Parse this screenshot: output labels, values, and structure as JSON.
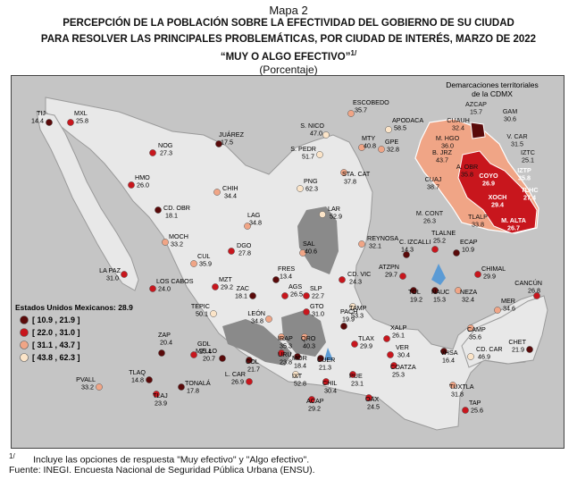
{
  "title": {
    "line1": "Mapa 2",
    "line2": "Percepción de la población sobre la efectividad del gobierno de su ciudad",
    "line3": "para resolver las principales problemáticas,  por ciudad de interés, marzo de 2022",
    "line4": "“Muy o algo efectivo”",
    "line4_sup": "1/",
    "line5": "(Porcentaje)"
  },
  "legend": {
    "title": "Estados Unidos Mexicanos: 28.9",
    "items": [
      {
        "label": "[ 10.9 , 21.9 ]",
        "color": "#5a0a0a"
      },
      {
        "label": "[ 22.0 , 31.0 ]",
        "color": "#c8161d"
      },
      {
        "label": "[ 31.1 , 43.7 ]",
        "color": "#f0a586"
      },
      {
        "label": "[ 43.8 , 62.3 ]",
        "color": "#fbe4c8"
      }
    ]
  },
  "inset": {
    "title_line1": "Demarcaciones territoriales",
    "title_line2": "de la CDMX"
  },
  "cities": [
    {
      "name": "TIJ",
      "value": "14.4",
      "cls": 1
    },
    {
      "name": "MXL",
      "value": "25.8",
      "cls": 2
    },
    {
      "name": "NOG",
      "value": "27.3",
      "cls": 2
    },
    {
      "name": "JUÁREZ",
      "value": "17.5",
      "cls": 1
    },
    {
      "name": "HMO",
      "value": "26.0",
      "cls": 2
    },
    {
      "name": "CHIH",
      "value": "34.4",
      "cls": 3
    },
    {
      "name": "CD. OBR",
      "value": "18.1",
      "cls": 1
    },
    {
      "name": "LA PAZ",
      "value": "31.0",
      "cls": 2
    },
    {
      "name": "LOS CABOS",
      "value": "24.0",
      "cls": 2
    },
    {
      "name": "MOCH",
      "value": "33.2",
      "cls": 3
    },
    {
      "name": "CUL",
      "value": "35.9",
      "cls": 3
    },
    {
      "name": "MZT",
      "value": "29.2",
      "cls": 2
    },
    {
      "name": "DGO",
      "value": "27.8",
      "cls": 2
    },
    {
      "name": "LAG",
      "value": "34.8",
      "cls": 3
    },
    {
      "name": "PNG",
      "value": "62.3",
      "cls": 4
    },
    {
      "name": "ESCOBEDO",
      "value": "35.7",
      "cls": 3
    },
    {
      "name": "APODACA",
      "value": "58.5",
      "cls": 4
    },
    {
      "name": "S. NICO",
      "value": "47.0",
      "cls": 4
    },
    {
      "name": "GPE",
      "value": "32.8",
      "cls": 3
    },
    {
      "name": "S. PEDR",
      "value": "51.7",
      "cls": 4
    },
    {
      "name": "MTY",
      "value": "40.8",
      "cls": 3
    },
    {
      "name": "STA. CAT",
      "value": "37.8",
      "cls": 3
    },
    {
      "name": "LAR",
      "value": "52.9",
      "cls": 4
    },
    {
      "name": "REYNOSA",
      "value": "32.1",
      "cls": 3
    },
    {
      "name": "SAL",
      "value": "40.6",
      "cls": 3
    },
    {
      "name": "FRES",
      "value": "13.4",
      "cls": 1
    },
    {
      "name": "CD. VIC",
      "value": "24.3",
      "cls": 2
    },
    {
      "name": "ZAC",
      "value": "18.1",
      "cls": 1
    },
    {
      "name": "AGS",
      "value": "26.5",
      "cls": 2
    },
    {
      "name": "SLP",
      "value": "22.7",
      "cls": 2
    },
    {
      "name": "TEPIC",
      "value": "50.1",
      "cls": 4
    },
    {
      "name": "LEÓN",
      "value": "34.8",
      "cls": 3
    },
    {
      "name": "GTO",
      "value": "31.0",
      "cls": 2
    },
    {
      "name": "TAMP",
      "value": "53.3",
      "cls": 4
    },
    {
      "name": "IRAP",
      "value": "35.3",
      "cls": 3
    },
    {
      "name": "QRO",
      "value": "40.3",
      "cls": 3
    },
    {
      "name": "PACH",
      "value": "19.9",
      "cls": 1
    },
    {
      "name": "MZLLO",
      "value": "20.7",
      "cls": 1
    },
    {
      "name": "COL",
      "value": "21.7",
      "cls": 1
    },
    {
      "name": "URU",
      "value": "23.8",
      "cls": 2
    },
    {
      "name": "MOR",
      "value": "18.4",
      "cls": 1
    },
    {
      "name": "TLAX",
      "value": "29.9",
      "cls": 2
    },
    {
      "name": "XALP",
      "value": "26.1",
      "cls": 2
    },
    {
      "name": "VER",
      "value": "30.4",
      "cls": 2
    },
    {
      "name": "L. CAR",
      "value": "26.9",
      "cls": 2
    },
    {
      "name": "IXT",
      "value": "52.8",
      "cls": 4
    },
    {
      "name": "CUER",
      "value": "21.3",
      "cls": 1
    },
    {
      "name": "PUE",
      "value": "23.1",
      "cls": 2
    },
    {
      "name": "CHIL",
      "value": "30.4",
      "cls": 2
    },
    {
      "name": "ACAP",
      "value": "29.2",
      "cls": 2
    },
    {
      "name": "OAX",
      "value": "24.5",
      "cls": 2
    },
    {
      "name": "COATZA",
      "value": "25.3",
      "cls": 2
    },
    {
      "name": "VHSA",
      "value": "16.4",
      "cls": 1
    },
    {
      "name": "CD. CAR",
      "value": "46.9",
      "cls": 4
    },
    {
      "name": "TUXTLA",
      "value": "31.8",
      "cls": 3
    },
    {
      "name": "TAP",
      "value": "25.6",
      "cls": 2
    },
    {
      "name": "CAMP",
      "value": "35.6",
      "cls": 3
    },
    {
      "name": "MER",
      "value": "34.6",
      "cls": 3
    },
    {
      "name": "CANCÚN",
      "value": "26.8",
      "cls": 2
    },
    {
      "name": "CHET",
      "value": "21.9",
      "cls": 1
    },
    {
      "name": "ZAP",
      "value": "20.4",
      "cls": 1
    },
    {
      "name": "GDL",
      "value": "25.4",
      "cls": 2
    },
    {
      "name": "TLAQ",
      "value": "14.8",
      "cls": 1
    },
    {
      "name": "TONALÁ",
      "value": "17.8",
      "cls": 1
    },
    {
      "name": "TLAJ",
      "value": "23.9",
      "cls": 2
    },
    {
      "name": "PVALL",
      "value": "33.2",
      "cls": 3
    },
    {
      "name": "C. IZCALLI",
      "value": "14.3",
      "cls": 1
    },
    {
      "name": "TLALNE",
      "value": "25.2",
      "cls": 2
    },
    {
      "name": "ECAP",
      "value": "10.9",
      "cls": 1
    },
    {
      "name": "CHIMAL",
      "value": "29.9",
      "cls": 2
    },
    {
      "name": "ATZPN",
      "value": "29.7",
      "cls": 2
    },
    {
      "name": "TOL",
      "value": "19.2",
      "cls": 1
    },
    {
      "name": "NAUC",
      "value": "15.3",
      "cls": 1
    },
    {
      "name": "NEZA",
      "value": "32.4",
      "cls": 3
    }
  ],
  "cdmx": [
    {
      "name": "AZCAP",
      "value": "15.7",
      "cls": 1
    },
    {
      "name": "GAM",
      "value": "30.6",
      "cls": 2
    },
    {
      "name": "CUAUH",
      "value": "32.4",
      "cls": 3
    },
    {
      "name": "M. HGO",
      "value": "36.0",
      "cls": 3
    },
    {
      "name": "V. CAR",
      "value": "31.5",
      "cls": 3
    },
    {
      "name": "B. JRZ",
      "value": "43.7",
      "cls": 3
    },
    {
      "name": "IZTC",
      "value": "25.1",
      "cls": 2
    },
    {
      "name": "A. OBR",
      "value": "35.8",
      "cls": 3
    },
    {
      "name": "COYO",
      "value": "26.9",
      "cls": 2
    },
    {
      "name": "IZTP",
      "value": "35.8",
      "cls": 3
    },
    {
      "name": "CUAJ",
      "value": "38.7",
      "cls": 3
    },
    {
      "name": "TLHC",
      "value": "27.4",
      "cls": 2
    },
    {
      "name": "XOCH",
      "value": "29.4",
      "cls": 2
    },
    {
      "name": "M. CONT",
      "value": "26.3",
      "cls": 2
    },
    {
      "name": "TLALP",
      "value": "33.8",
      "cls": 3
    },
    {
      "name": "M. ALTA",
      "value": "26.7",
      "cls": 2
    }
  ],
  "footnote": {
    "mark": "1/",
    "text": "Incluye las opciones de respuesta \"Muy efectivo\" y \"Algo efectivo\".",
    "source": "Fuente: INEGI. Encuesta Nacional de Seguridad Pública Urbana (ENSU)."
  }
}
